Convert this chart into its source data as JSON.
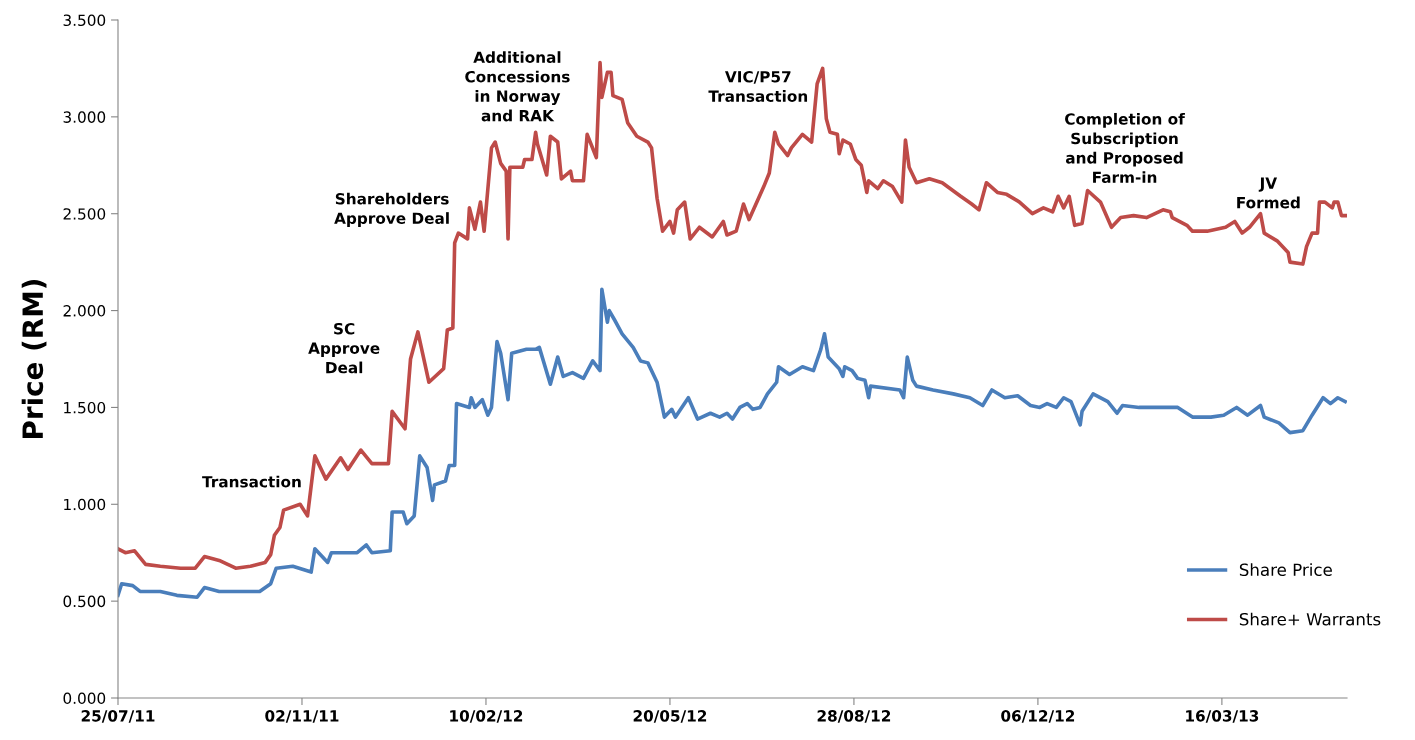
{
  "chart_data": {
    "type": "line",
    "ylabel": "Price (RM)",
    "xlim": [
      "2011-07-25",
      "2013-05-23"
    ],
    "ylim": [
      0,
      3.5
    ],
    "xticks": [
      {
        "value": "2011-07-25",
        "label": "25/07/11"
      },
      {
        "value": "2011-11-02",
        "label": "02/11/11"
      },
      {
        "value": "2012-02-10",
        "label": "10/02/12"
      },
      {
        "value": "2012-05-20",
        "label": "20/05/12"
      },
      {
        "value": "2012-08-28",
        "label": "28/08/12"
      },
      {
        "value": "2012-12-06",
        "label": "06/12/12"
      },
      {
        "value": "2013-03-16",
        "label": "16/03/13"
      }
    ],
    "yticks": [
      {
        "value": 0,
        "label": "0.000"
      },
      {
        "value": 0.5,
        "label": "0.500"
      },
      {
        "value": 1,
        "label": "1.000"
      },
      {
        "value": 1.5,
        "label": "1.500"
      },
      {
        "value": 2,
        "label": "2.000"
      },
      {
        "value": 2.5,
        "label": "2.500"
      },
      {
        "value": 3,
        "label": "3.000"
      },
      {
        "value": 3.5,
        "label": "3.500"
      }
    ],
    "grid": false,
    "legend": "bottom right",
    "marker": "none",
    "line_style": "solid",
    "series": [
      {
        "name": "Share Price",
        "color": "#4a7ebb",
        "x": [
          "2011-07-25",
          "2011-07-27",
          "2011-08-02",
          "2011-08-06",
          "2011-08-17",
          "2011-08-26",
          "2011-09-06",
          "2011-09-10",
          "2011-09-18",
          "2011-09-28",
          "2011-10-10",
          "2011-10-16",
          "2011-10-19",
          "2011-10-28",
          "2011-11-07",
          "2011-11-09",
          "2011-11-16",
          "2011-11-18",
          "2011-11-24",
          "2011-12-02",
          "2011-12-07",
          "2011-12-10",
          "2011-12-20",
          "2011-12-21",
          "2011-12-27",
          "2011-12-29",
          "2012-01-02",
          "2012-01-05",
          "2012-01-09",
          "2012-01-12",
          "2012-01-13",
          "2012-01-19",
          "2012-01-21",
          "2012-01-24",
          "2012-01-25",
          "2012-02-01",
          "2012-02-02",
          "2012-02-04",
          "2012-02-08",
          "2012-02-11",
          "2012-02-13",
          "2012-02-16",
          "2012-02-18",
          "2012-02-22",
          "2012-02-24",
          "2012-03-03",
          "2012-03-08",
          "2012-03-10",
          "2012-03-16",
          "2012-03-20",
          "2012-03-23",
          "2012-03-28",
          "2012-04-03",
          "2012-04-08",
          "2012-04-12",
          "2012-04-13",
          "2012-04-16",
          "2012-04-17",
          "2012-04-20",
          "2012-04-24",
          "2012-04-30",
          "2012-05-04",
          "2012-05-08",
          "2012-05-13",
          "2012-05-17",
          "2012-05-21",
          "2012-05-23",
          "2012-05-30",
          "2012-06-04",
          "2012-06-11",
          "2012-06-16",
          "2012-06-20",
          "2012-06-23",
          "2012-06-27",
          "2012-07-01",
          "2012-07-04",
          "2012-07-08",
          "2012-07-12",
          "2012-07-17",
          "2012-07-18",
          "2012-07-24",
          "2012-07-31",
          "2012-08-06",
          "2012-08-10",
          "2012-08-12",
          "2012-08-14",
          "2012-08-20",
          "2012-08-22",
          "2012-08-23",
          "2012-08-27",
          "2012-08-30",
          "2012-09-03",
          "2012-09-05",
          "2012-09-06",
          "2012-09-22",
          "2012-09-24",
          "2012-09-26",
          "2012-09-29",
          "2012-10-01",
          "2012-10-10",
          "2012-10-21",
          "2012-10-30",
          "2012-11-06",
          "2012-11-11",
          "2012-11-18",
          "2012-11-25",
          "2012-12-02",
          "2012-12-07",
          "2012-12-11",
          "2012-12-16",
          "2012-12-20",
          "2012-12-24",
          "2012-12-29",
          "2012-12-30",
          "2013-01-05",
          "2013-01-13",
          "2013-01-18",
          "2013-01-21",
          "2013-01-30",
          "2013-02-10",
          "2013-02-20",
          "2013-02-28",
          "2013-03-10",
          "2013-03-17",
          "2013-03-24",
          "2013-03-30",
          "2013-04-06",
          "2013-04-08",
          "2013-04-16",
          "2013-04-22",
          "2013-04-29",
          "2013-05-04",
          "2013-05-10",
          "2013-05-14",
          "2013-05-18",
          "2013-05-22"
        ],
        "values": [
          0.53,
          0.59,
          0.58,
          0.55,
          0.55,
          0.53,
          0.52,
          0.57,
          0.55,
          0.55,
          0.55,
          0.59,
          0.67,
          0.68,
          0.65,
          0.77,
          0.7,
          0.75,
          0.75,
          0.75,
          0.79,
          0.75,
          0.76,
          0.96,
          0.96,
          0.9,
          0.94,
          1.25,
          1.19,
          1.02,
          1.1,
          1.12,
          1.2,
          1.2,
          1.52,
          1.5,
          1.55,
          1.5,
          1.54,
          1.46,
          1.5,
          1.84,
          1.78,
          1.54,
          1.78,
          1.8,
          1.8,
          1.81,
          1.62,
          1.76,
          1.66,
          1.68,
          1.65,
          1.74,
          1.69,
          2.11,
          1.94,
          2.0,
          1.95,
          1.88,
          1.81,
          1.74,
          1.73,
          1.63,
          1.45,
          1.49,
          1.45,
          1.55,
          1.44,
          1.47,
          1.45,
          1.47,
          1.44,
          1.5,
          1.52,
          1.49,
          1.5,
          1.57,
          1.63,
          1.71,
          1.67,
          1.71,
          1.69,
          1.8,
          1.88,
          1.76,
          1.7,
          1.66,
          1.71,
          1.69,
          1.65,
          1.64,
          1.55,
          1.61,
          1.59,
          1.55,
          1.76,
          1.64,
          1.61,
          1.59,
          1.57,
          1.55,
          1.51,
          1.59,
          1.55,
          1.56,
          1.51,
          1.5,
          1.52,
          1.5,
          1.55,
          1.53,
          1.41,
          1.48,
          1.57,
          1.53,
          1.47,
          1.51,
          1.5,
          1.5,
          1.5,
          1.45,
          1.45,
          1.46,
          1.5,
          1.46,
          1.51,
          1.45,
          1.42,
          1.37,
          1.38,
          1.46,
          1.55,
          1.52,
          1.55,
          1.53
        ]
      },
      {
        "name": "Share+ Warrants",
        "color": "#be4b48",
        "x": [
          "2011-07-25",
          "2011-07-29",
          "2011-08-03",
          "2011-08-09",
          "2011-08-17",
          "2011-08-28",
          "2011-09-05",
          "2011-09-10",
          "2011-09-18",
          "2011-09-27",
          "2011-10-05",
          "2011-10-13",
          "2011-10-16",
          "2011-10-18",
          "2011-10-21",
          "2011-10-23",
          "2011-11-01",
          "2011-11-05",
          "2011-11-09",
          "2011-11-15",
          "2011-11-23",
          "2011-11-27",
          "2011-12-04",
          "2011-12-10",
          "2011-12-19",
          "2011-12-21",
          "2011-12-28",
          "2011-12-31",
          "2012-01-04",
          "2012-01-10",
          "2012-01-18",
          "2012-01-20",
          "2012-01-23",
          "2012-01-24",
          "2012-01-26",
          "2012-01-31",
          "2012-02-01",
          "2012-02-04",
          "2012-02-07",
          "2012-02-09",
          "2012-02-13",
          "2012-02-15",
          "2012-02-18",
          "2012-02-21",
          "2012-02-22",
          "2012-02-23",
          "2012-03-01",
          "2012-03-02",
          "2012-03-06",
          "2012-03-08",
          "2012-03-09",
          "2012-03-14",
          "2012-03-16",
          "2012-03-20",
          "2012-03-22",
          "2012-03-27",
          "2012-03-28",
          "2012-04-03",
          "2012-04-05",
          "2012-04-10",
          "2012-04-12",
          "2012-04-13",
          "2012-04-16",
          "2012-04-18",
          "2012-04-19",
          "2012-04-24",
          "2012-04-27",
          "2012-05-02",
          "2012-05-08",
          "2012-05-10",
          "2012-05-13",
          "2012-05-16",
          "2012-05-20",
          "2012-05-22",
          "2012-05-24",
          "2012-05-28",
          "2012-05-31",
          "2012-06-05",
          "2012-06-12",
          "2012-06-18",
          "2012-06-20",
          "2012-06-25",
          "2012-06-29",
          "2012-07-02",
          "2012-07-10",
          "2012-07-13",
          "2012-07-16",
          "2012-07-18",
          "2012-07-23",
          "2012-07-25",
          "2012-07-31",
          "2012-08-05",
          "2012-08-08",
          "2012-08-11",
          "2012-08-13",
          "2012-08-15",
          "2012-08-19",
          "2012-08-20",
          "2012-08-22",
          "2012-08-26",
          "2012-08-29",
          "2012-09-01",
          "2012-09-04",
          "2012-09-05",
          "2012-09-10",
          "2012-09-13",
          "2012-09-18",
          "2012-09-23",
          "2012-09-25",
          "2012-09-27",
          "2012-10-01",
          "2012-10-08",
          "2012-10-15",
          "2012-10-25",
          "2012-10-31",
          "2012-11-04",
          "2012-11-08",
          "2012-11-14",
          "2012-11-19",
          "2012-11-26",
          "2012-12-03",
          "2012-12-09",
          "2012-12-14",
          "2012-12-17",
          "2012-12-20",
          "2012-12-23",
          "2012-12-26",
          "2012-12-30",
          "2013-01-02",
          "2013-01-09",
          "2013-01-15",
          "2013-01-20",
          "2013-01-27",
          "2013-02-03",
          "2013-02-12",
          "2013-02-16",
          "2013-02-17",
          "2013-02-25",
          "2013-02-28",
          "2013-03-08",
          "2013-03-18",
          "2013-03-23",
          "2013-03-27",
          "2013-03-31",
          "2013-04-06",
          "2013-04-08",
          "2013-04-15",
          "2013-04-21",
          "2013-04-22",
          "2013-04-29",
          "2013-05-01",
          "2013-05-04",
          "2013-05-07",
          "2013-05-08",
          "2013-05-11",
          "2013-05-15",
          "2013-05-16",
          "2013-05-18",
          "2013-05-20",
          "2013-05-23"
        ],
        "values": [
          0.77,
          0.75,
          0.76,
          0.69,
          0.68,
          0.67,
          0.67,
          0.73,
          0.71,
          0.67,
          0.68,
          0.7,
          0.74,
          0.84,
          0.88,
          0.97,
          1.0,
          0.94,
          1.25,
          1.13,
          1.24,
          1.18,
          1.28,
          1.21,
          1.21,
          1.48,
          1.39,
          1.75,
          1.89,
          1.63,
          1.7,
          1.9,
          1.91,
          2.35,
          2.4,
          2.37,
          2.53,
          2.42,
          2.56,
          2.41,
          2.84,
          2.87,
          2.76,
          2.72,
          2.37,
          2.74,
          2.74,
          2.78,
          2.78,
          2.92,
          2.86,
          2.7,
          2.9,
          2.87,
          2.68,
          2.72,
          2.67,
          2.67,
          2.91,
          2.79,
          3.28,
          3.1,
          3.23,
          3.23,
          3.11,
          3.09,
          2.97,
          2.9,
          2.87,
          2.84,
          2.58,
          2.41,
          2.46,
          2.4,
          2.52,
          2.56,
          2.37,
          2.43,
          2.38,
          2.46,
          2.39,
          2.41,
          2.55,
          2.47,
          2.64,
          2.71,
          2.92,
          2.86,
          2.8,
          2.84,
          2.91,
          2.87,
          3.17,
          3.25,
          2.99,
          2.92,
          2.91,
          2.81,
          2.88,
          2.86,
          2.78,
          2.75,
          2.61,
          2.67,
          2.63,
          2.67,
          2.64,
          2.56,
          2.88,
          2.74,
          2.66,
          2.68,
          2.66,
          2.59,
          2.55,
          2.52,
          2.66,
          2.61,
          2.6,
          2.56,
          2.5,
          2.53,
          2.51,
          2.59,
          2.53,
          2.59,
          2.44,
          2.45,
          2.62,
          2.56,
          2.43,
          2.48,
          2.49,
          2.48,
          2.52,
          2.51,
          2.48,
          2.44,
          2.41,
          2.41,
          2.43,
          2.46,
          2.4,
          2.43,
          2.5,
          2.4,
          2.36,
          2.3,
          2.25,
          2.24,
          2.33,
          2.4,
          2.4,
          2.56,
          2.56,
          2.53,
          2.56,
          2.56,
          2.49,
          2.49
        ]
      }
    ],
    "annotations": [
      "Transaction",
      "SC\nApprove\nDeal",
      "Shareholders\nApprove Deal",
      "Additional\nConcessions\nin Norway\nand RAK",
      "VIC/P57\nTransaction",
      "Completion of\nSubscription\nand Proposed\nFarm-in",
      "JV\nFormed"
    ]
  }
}
